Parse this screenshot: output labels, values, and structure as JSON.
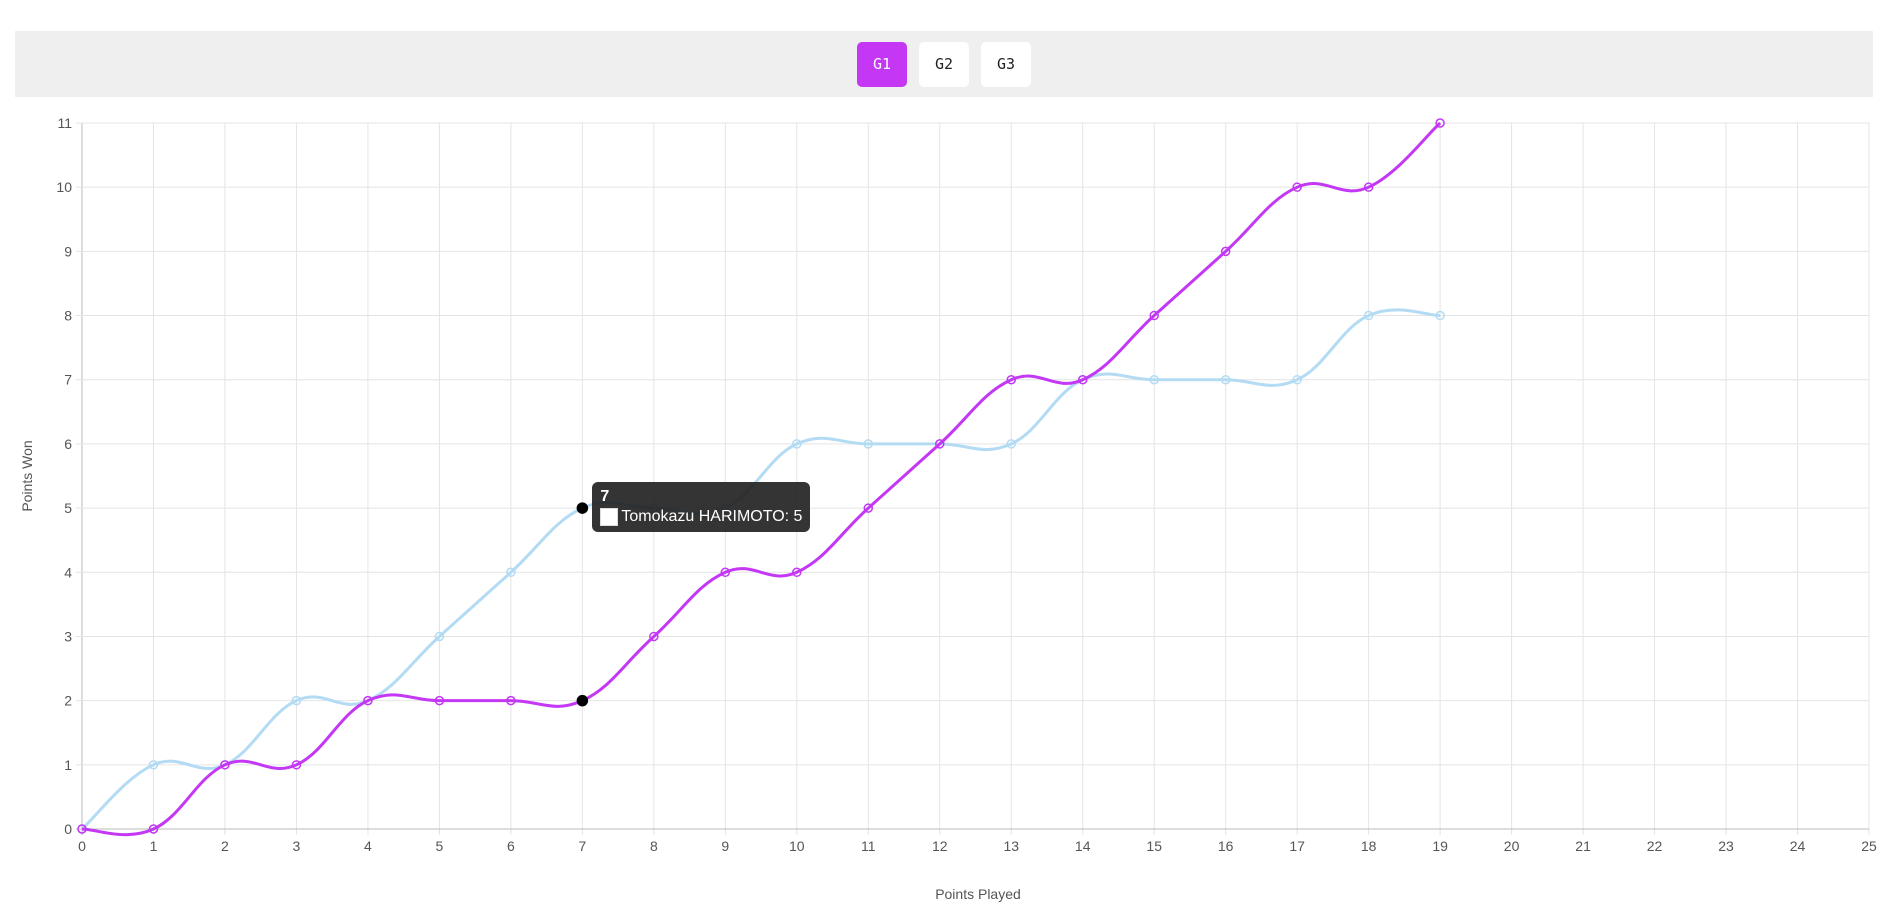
{
  "game_tabs": {
    "items": [
      {
        "label": "G1",
        "active": true
      },
      {
        "label": "G2",
        "active": false
      },
      {
        "label": "G3",
        "active": false
      }
    ],
    "active_color": "#c337f5"
  },
  "chart_data": {
    "type": "line",
    "xlabel": "Points Played",
    "ylabel": "Points Won",
    "xlim": [
      0,
      25
    ],
    "ylim": [
      0,
      11
    ],
    "grid": true,
    "x": [
      0,
      1,
      2,
      3,
      4,
      5,
      6,
      7,
      8,
      9,
      10,
      11,
      12,
      13,
      14,
      15,
      16,
      17,
      18,
      19
    ],
    "series": [
      {
        "name": "Tomokazu HARIMOTO",
        "color": "#b3dbf4",
        "values": [
          0,
          1,
          1,
          2,
          2,
          3,
          4,
          5,
          5,
          5,
          6,
          6,
          6,
          6,
          7,
          7,
          7,
          7,
          8,
          8
        ]
      },
      {
        "color": "#c337f5",
        "values": [
          0,
          0,
          1,
          1,
          2,
          2,
          2,
          2,
          3,
          4,
          4,
          5,
          6,
          7,
          7,
          8,
          9,
          10,
          10,
          11
        ]
      }
    ]
  },
  "tooltip": {
    "title": "7",
    "label": "Tomokazu HARIMOTO: 5",
    "x": 7
  }
}
